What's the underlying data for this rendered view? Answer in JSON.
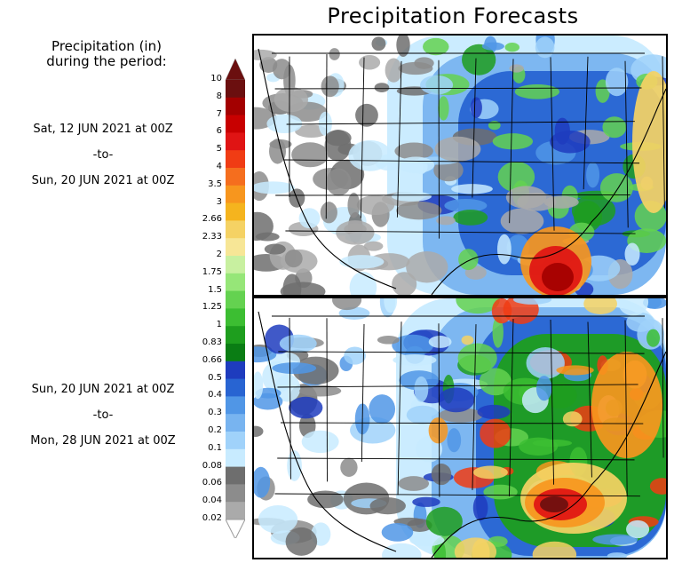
{
  "title": "Precipitation Forecasts",
  "legend": {
    "title_line1": "Precipitation (in)",
    "title_line2": "during the period:",
    "levels": [
      "10",
      "8",
      "7",
      "6",
      "5",
      "4",
      "3.5",
      "3",
      "2.66",
      "2.33",
      "2",
      "1.75",
      "1.5",
      "1.25",
      "1",
      "0.83",
      "0.66",
      "0.5",
      "0.4",
      "0.3",
      "0.2",
      "0.1",
      "0.08",
      "0.06",
      "0.04",
      "0.02"
    ],
    "colors": [
      "#6b0f0f",
      "#a30000",
      "#c80000",
      "#e01414",
      "#f03c14",
      "#f56e1e",
      "#f7961e",
      "#f5b41e",
      "#f5d264",
      "#f7e696",
      "#c8f0a0",
      "#96e678",
      "#64d250",
      "#3cbe32",
      "#1e9e1e",
      "#0a7d14",
      "#1e3cbe",
      "#2864d2",
      "#5096e6",
      "#78b4f0",
      "#a0d2fa",
      "#c8ebff",
      "#6e6e6e",
      "#8c8c8c",
      "#aaaaaa",
      "#c8c8c8"
    ]
  },
  "periods": [
    {
      "from": "Sat, 12 JUN 2021 at 00Z",
      "sep": "-to-",
      "to": "Sun, 20 JUN 2021 at 00Z"
    },
    {
      "from": "Sun, 20 JUN 2021 at 00Z",
      "sep": "-to-",
      "to": "Mon, 28 JUN 2021 at 00Z"
    }
  ]
}
